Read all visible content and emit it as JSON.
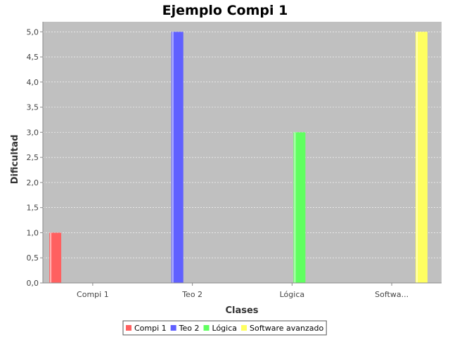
{
  "chart_data": {
    "type": "bar",
    "title": "Ejemplo Compi 1",
    "xlabel": "Clases",
    "ylabel": "Dificultad",
    "categories": [
      "Compi 1",
      "Teo 2",
      "Lógica",
      "Softwa..."
    ],
    "series": [
      {
        "name": "Compi 1",
        "color": "#ff6060",
        "values": [
          1.0,
          null,
          null,
          null
        ]
      },
      {
        "name": "Teo 2",
        "color": "#6060ff",
        "values": [
          null,
          5.0,
          null,
          null
        ]
      },
      {
        "name": "Lógica",
        "color": "#60ff60",
        "values": [
          null,
          null,
          3.0,
          null
        ]
      },
      {
        "name": "Software avanzado",
        "color": "#ffff60",
        "values": [
          null,
          null,
          null,
          5.0
        ]
      }
    ],
    "ylim": [
      0,
      5.2
    ],
    "yticks": [
      "0,0",
      "0,5",
      "1,0",
      "1,5",
      "2,0",
      "2,5",
      "3,0",
      "3,5",
      "4,0",
      "4,5",
      "5,0"
    ],
    "grid": true,
    "legend_position": "bottom",
    "plot_background": "#c0c0c0"
  }
}
